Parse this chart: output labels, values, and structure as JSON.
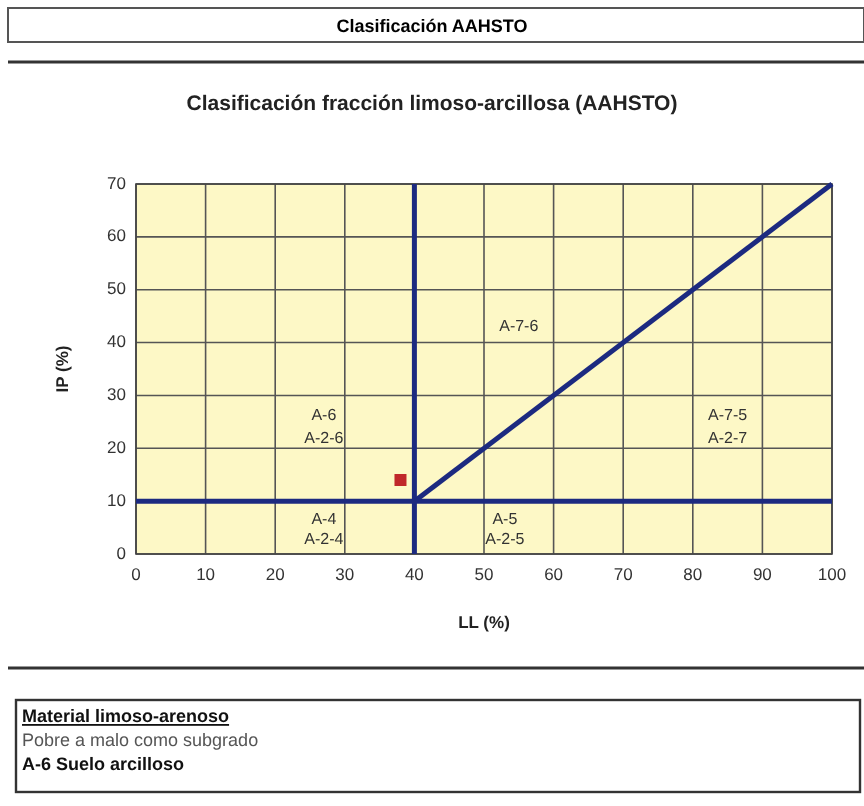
{
  "chart_data": {
    "type": "scatter",
    "title": "Clasificación fracción limoso-arcillosa (AAHSTO)",
    "xlabel": "LL (%)",
    "ylabel": "IP (%)",
    "xlim": [
      0,
      100
    ],
    "xticks": [
      0,
      10,
      20,
      30,
      40,
      50,
      60,
      70,
      80,
      90,
      100
    ],
    "ylim": [
      0,
      70
    ],
    "yticks": [
      0,
      10,
      20,
      30,
      40,
      50,
      60,
      70
    ],
    "grid": true,
    "series": [
      {
        "type": "scatter",
        "marker": "square",
        "color": "#c0282a",
        "x": [
          38
        ],
        "values": [
          14
        ]
      },
      {
        "type": "line",
        "marker": "none",
        "color": "#1c2a80",
        "x": [
          40,
          100
        ],
        "values": [
          10,
          70
        ]
      },
      {
        "type": "line",
        "marker": "none",
        "color": "#1c2a80",
        "x": [
          40,
          40
        ],
        "values": [
          0,
          70
        ]
      },
      {
        "type": "line",
        "marker": "none",
        "color": "#1c2a80",
        "x": [
          0,
          100
        ],
        "values": [
          10,
          10
        ]
      }
    ],
    "annotations": [
      "Clasificación AAHSTO",
      "Material limoso-arenoso",
      "Pobre a malo como subgrado",
      "A-6 Suelo arcilloso",
      "A-7-6",
      "A-6",
      "A-2-6",
      "A-7-5",
      "A-2-7",
      "A-4",
      "A-2-4",
      "A-5",
      "A-2-5"
    ]
  }
}
